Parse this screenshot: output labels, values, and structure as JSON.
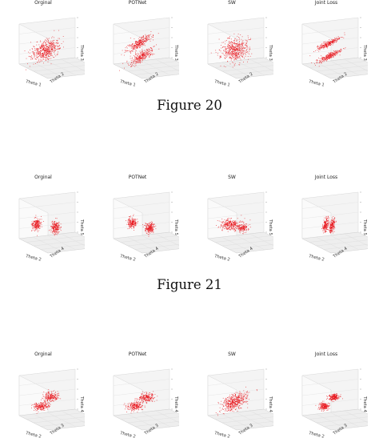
{
  "point_color": "#e8141b",
  "figures": [
    {
      "caption": "Figure 20",
      "panels": [
        {
          "title": "Orginal",
          "axis_labels": [
            "Theta 1",
            "Theta 2",
            "Theta 3"
          ]
        },
        {
          "title": "POTNet",
          "axis_labels": [
            "Theta 1",
            "Theta 2",
            "Theta 3"
          ]
        },
        {
          "title": "SW",
          "axis_labels": [
            "Theta 1",
            "Theta 2",
            "Theta 3"
          ]
        },
        {
          "title": "Joint Loss",
          "axis_labels": [
            "Theta 1",
            "Theta 2",
            "Theta 3"
          ]
        }
      ]
    },
    {
      "caption": "Figure 21",
      "panels": [
        {
          "title": "Orginal",
          "axis_labels": [
            "Theta 2",
            "Theta 4",
            "Theta 5"
          ]
        },
        {
          "title": "POTNet",
          "axis_labels": [
            "Theta 2",
            "Theta 4",
            "Theta 5"
          ]
        },
        {
          "title": "SW",
          "axis_labels": [
            "Theta 2",
            "Theta 4",
            "Theta 5"
          ]
        },
        {
          "title": "Joint Loss",
          "axis_labels": [
            "Theta 2",
            "Theta 4",
            "Theta 5"
          ]
        }
      ]
    },
    {
      "caption": "",
      "panels": [
        {
          "title": "Orginal",
          "axis_labels": [
            "Theta 2",
            "Theta 3",
            "Theta 4"
          ]
        },
        {
          "title": "POTNet",
          "axis_labels": [
            "Theta 2",
            "Theta 3",
            "Theta 4"
          ]
        },
        {
          "title": "SW",
          "axis_labels": [
            "Theta 2",
            "Theta 3",
            "Theta 4"
          ]
        },
        {
          "title": "Joint Loss",
          "axis_labels": [
            "Theta 2",
            "Theta 3",
            "Theta 4"
          ]
        }
      ]
    }
  ]
}
